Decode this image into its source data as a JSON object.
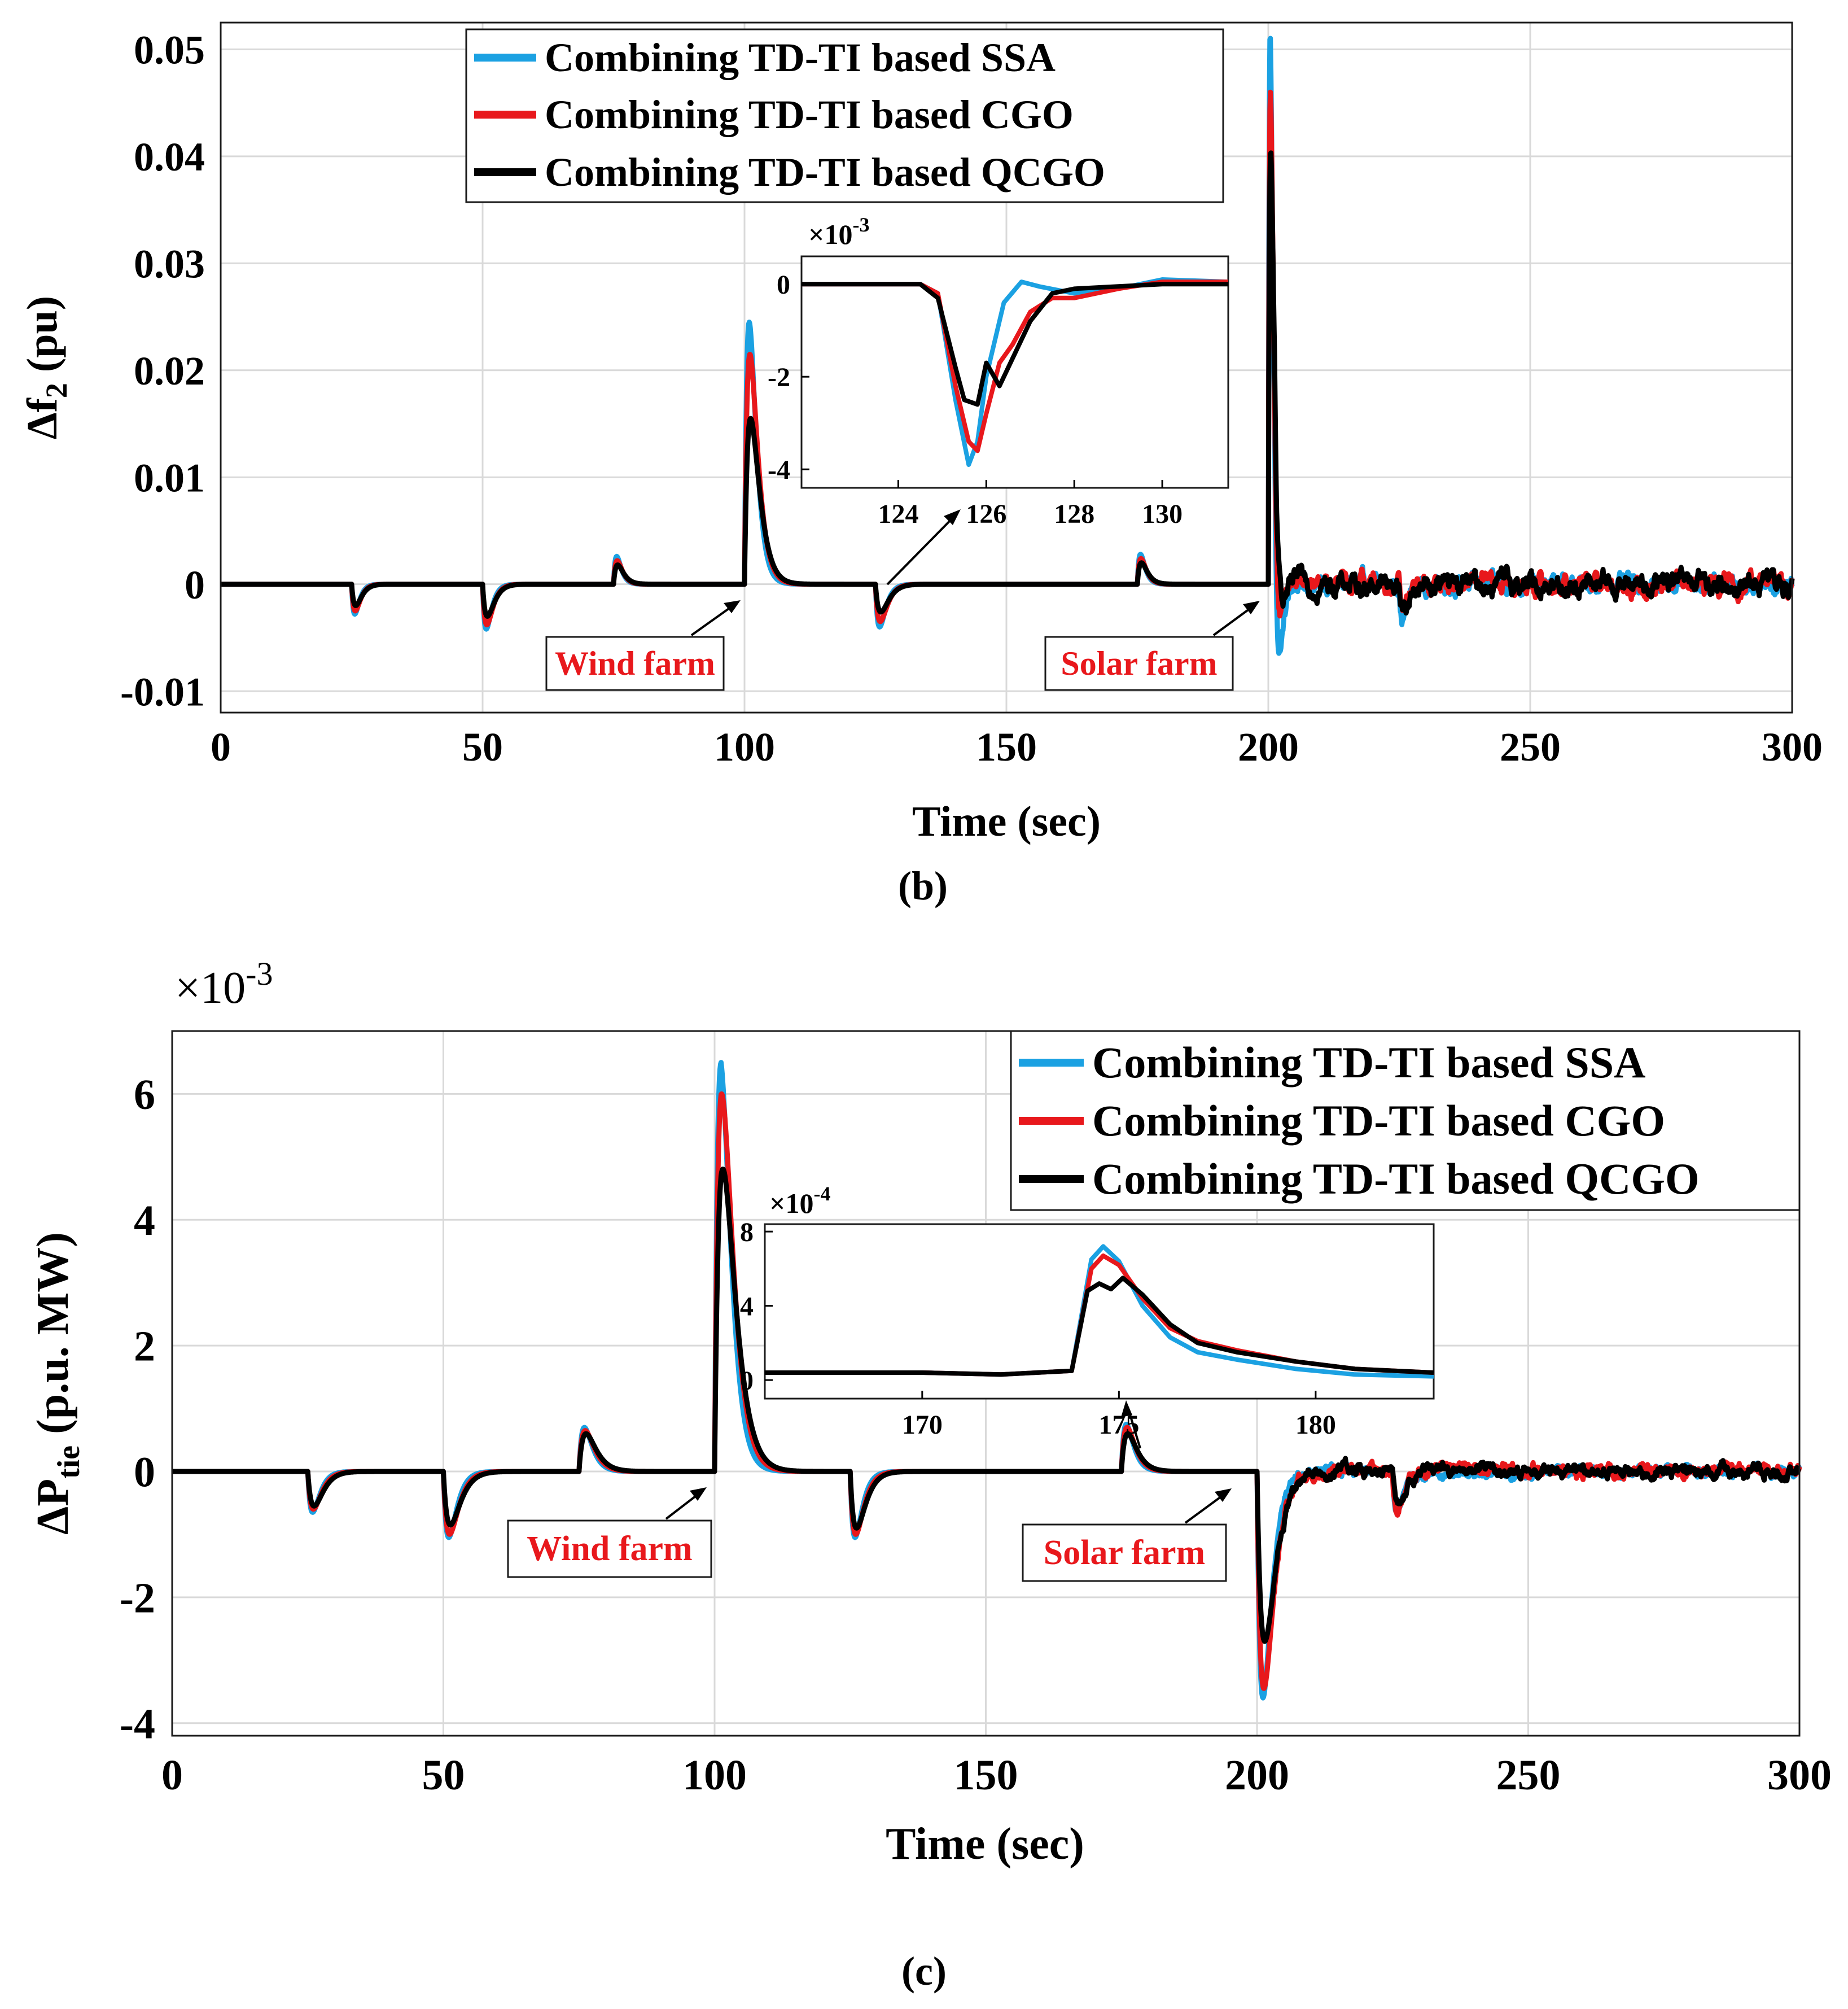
{
  "colors": {
    "ssa": "#1ba1e2",
    "cgo": "#e8181c",
    "qcgo": "#000000",
    "annotation": "#e8181c",
    "grid": "#d9d9d9",
    "background": "#ffffff"
  },
  "chart_data": [
    {
      "id": "b",
      "type": "line",
      "caption": "(b)",
      "xlabel": "Time (sec)",
      "ylabel_main": "Δf",
      "ylabel_sub": "2",
      "ylabel_tail": " (pu)",
      "xlim": [
        0,
        300
      ],
      "ylim": [
        -0.012,
        0.0525
      ],
      "xticks": [
        0,
        50,
        100,
        150,
        200,
        250,
        300
      ],
      "xtick_labels": [
        "0",
        "50",
        "100",
        "150",
        "200",
        "250",
        "300"
      ],
      "yticks": [
        -0.01,
        0,
        0.01,
        0.02,
        0.03,
        0.04,
        0.05
      ],
      "ytick_labels": [
        "-0.01",
        "0",
        "0.01",
        "0.02",
        "0.03",
        "0.04",
        "0.05"
      ],
      "grid": true,
      "legend": {
        "placement": "top-center",
        "entries": [
          "Combining TD-TI based SSA",
          "Combining TD-TI based CGO",
          "Combining TD-TI based QCGO"
        ]
      },
      "annotations": [
        "Wind farm",
        "Solar farm"
      ],
      "events": [
        {
          "t": 25,
          "amp": [
            -0.0028,
            -0.0025,
            -0.002
          ],
          "tau": 0.6
        },
        {
          "t": 50,
          "amp": [
            -0.0042,
            -0.0038,
            -0.003
          ],
          "tau": 0.7
        },
        {
          "t": 75,
          "amp": [
            0.0026,
            0.0022,
            0.0018
          ],
          "tau": 0.6
        },
        {
          "t": 100,
          "amp": [
            0.0245,
            0.0215,
            0.0155
          ],
          "tau": 0.9
        },
        {
          "t": 125,
          "amp": [
            -0.004,
            -0.0035,
            -0.0026
          ],
          "tau": 0.8
        },
        {
          "t": 175,
          "amp": [
            0.0028,
            0.0024,
            0.002
          ],
          "tau": 0.6
        },
        {
          "t": 200,
          "amp": [
            0.0515,
            0.046,
            0.0405
          ],
          "tau": 0.35,
          "undershoot": [
            -0.009,
            -0.006,
            -0.005
          ]
        },
        {
          "t": 225,
          "amp": [
            -0.0032,
            -0.0028,
            -0.0024
          ],
          "tau": 0.6
        }
      ],
      "noise_after": 201,
      "noise_amp": [
        0.0009,
        0.0011,
        0.0012
      ],
      "series": [
        {
          "name": "Combining TD-TI based SSA",
          "color": "#1ba1e2"
        },
        {
          "name": "Combining TD-TI based CGO",
          "color": "#e8181c"
        },
        {
          "name": "Combining TD-TI based QCGO",
          "color": "#000000"
        }
      ],
      "inset": {
        "exponent_label": "×10",
        "exponent_power": "-3",
        "xlim": [
          121.8,
          131.5
        ],
        "ylim": [
          -4.4,
          0.6
        ],
        "xticks": [
          124,
          126,
          128,
          130
        ],
        "xtick_labels": [
          "124",
          "126",
          "128",
          "130"
        ],
        "yticks": [
          -4,
          -2,
          0
        ],
        "ytick_labels": [
          "-4",
          "-2",
          "0"
        ],
        "series": [
          {
            "name": "Combining TD-TI based SSA",
            "x": [
              121.8,
              124.5,
              124.9,
              125.3,
              125.6,
              125.8,
              126.0,
              126.4,
              126.8,
              127.2,
              128.0,
              129.0,
              130.0,
              131.5
            ],
            "y": [
              0,
              0,
              -0.2,
              -2.5,
              -3.9,
              -3.4,
              -2.0,
              -0.4,
              0.05,
              -0.05,
              -0.2,
              -0.1,
              0.1,
              0.05
            ]
          },
          {
            "name": "Combining TD-TI based CGO",
            "x": [
              121.8,
              124.5,
              124.9,
              125.3,
              125.6,
              125.8,
              126.0,
              126.3,
              126.6,
              127.0,
              127.5,
              128.0,
              129.0,
              130.0,
              131.5
            ],
            "y": [
              0,
              0,
              -0.2,
              -2.2,
              -3.4,
              -3.6,
              -2.8,
              -1.7,
              -1.3,
              -0.6,
              -0.3,
              -0.3,
              -0.1,
              0.05,
              0.05
            ]
          },
          {
            "name": "Combining TD-TI based QCGO",
            "x": [
              121.8,
              124.5,
              124.9,
              125.3,
              125.5,
              125.8,
              126.0,
              126.3,
              126.6,
              127.0,
              127.5,
              128.0,
              129.0,
              130.0,
              131.5
            ],
            "y": [
              0,
              0,
              -0.3,
              -1.8,
              -2.5,
              -2.6,
              -1.7,
              -2.2,
              -1.6,
              -0.8,
              -0.2,
              -0.1,
              -0.05,
              0,
              0
            ]
          }
        ]
      }
    },
    {
      "id": "c",
      "type": "line",
      "caption": "(c)",
      "xlabel": "Time (sec)",
      "ylabel_main": "ΔP",
      "ylabel_sub": "tie",
      "ylabel_tail": " (p.u. MW)",
      "exponent_label": "×10",
      "exponent_power": "-3",
      "xlim": [
        0,
        300
      ],
      "ylim": [
        -4.2,
        7.0
      ],
      "xticks": [
        0,
        50,
        100,
        150,
        200,
        250,
        300
      ],
      "xtick_labels": [
        "0",
        "50",
        "100",
        "150",
        "200",
        "250",
        "300"
      ],
      "yticks": [
        -4,
        -2,
        0,
        2,
        4,
        6
      ],
      "ytick_labels": [
        "-4",
        "-2",
        "0",
        "2",
        "4",
        "6"
      ],
      "grid": true,
      "legend": {
        "placement": "top-right",
        "entries": [
          "Combining TD-TI based SSA",
          "Combining TD-TI based CGO",
          "Combining TD-TI based QCGO"
        ]
      },
      "annotations": [
        "Wind farm",
        "Solar farm"
      ],
      "events": [
        {
          "t": 25,
          "amp": [
            -0.65,
            -0.6,
            -0.55
          ],
          "tau": 0.9
        },
        {
          "t": 50,
          "amp": [
            -1.05,
            -1.0,
            -0.85
          ],
          "tau": 1.0
        },
        {
          "t": 75,
          "amp": [
            0.7,
            0.65,
            0.6
          ],
          "tau": 1.0
        },
        {
          "t": 100,
          "amp": [
            6.5,
            6.05,
            4.85
          ],
          "tau": 1.2,
          "undershoot": [
            -0.15,
            -0.1,
            -0.05
          ]
        },
        {
          "t": 125,
          "amp": [
            -1.05,
            -1.0,
            -0.9
          ],
          "tau": 0.9
        },
        {
          "t": 175,
          "amp": [
            0.75,
            0.7,
            0.6
          ],
          "tau": 0.9
        },
        {
          "t": 200,
          "amp": [
            -3.6,
            -3.45,
            -2.7
          ],
          "tau": 1.1
        },
        {
          "t": 225,
          "amp": [
            -0.65,
            -0.6,
            -0.5
          ],
          "tau": 0.8
        }
      ],
      "noise_after": 203,
      "noise_amp": [
        0.1,
        0.12,
        0.12
      ],
      "series": [
        {
          "name": "Combining TD-TI based SSA",
          "color": "#1ba1e2"
        },
        {
          "name": "Combining TD-TI based CGO",
          "color": "#e8181c"
        },
        {
          "name": "Combining TD-TI based QCGO",
          "color": "#000000"
        }
      ],
      "inset": {
        "exponent_label": "×10",
        "exponent_power": "-4",
        "xlim": [
          166,
          183
        ],
        "ylim": [
          -1.0,
          8.4
        ],
        "xticks": [
          170,
          175,
          180
        ],
        "xtick_labels": [
          "170",
          "175",
          "180"
        ],
        "yticks": [
          0,
          4,
          8
        ],
        "ytick_labels": [
          "0",
          "4",
          "8"
        ],
        "series": [
          {
            "name": "Combining TD-TI based SSA",
            "x": [
              166,
              170,
              172,
              173.8,
              174.3,
              174.6,
              175.0,
              175.6,
              176.3,
              177.0,
              178.0,
              179.5,
              181.0,
              183.0
            ],
            "y": [
              0.4,
              0.4,
              0.3,
              0.5,
              6.5,
              7.2,
              6.4,
              4.0,
              2.3,
              1.5,
              1.1,
              0.6,
              0.3,
              0.2
            ]
          },
          {
            "name": "Combining TD-TI based CGO",
            "x": [
              166,
              170,
              172,
              173.8,
              174.3,
              174.6,
              175.0,
              175.6,
              176.3,
              177.0,
              178.0,
              179.5,
              181.0,
              183.0
            ],
            "y": [
              0.4,
              0.4,
              0.3,
              0.5,
              6.0,
              6.7,
              6.2,
              4.4,
              2.8,
              2.1,
              1.6,
              1.0,
              0.6,
              0.4
            ]
          },
          {
            "name": "Combining TD-TI based QCGO",
            "x": [
              166,
              170,
              172,
              173.8,
              174.2,
              174.5,
              174.8,
              175.1,
              175.6,
              176.3,
              177.0,
              178.0,
              179.5,
              181.0,
              183.0
            ],
            "y": [
              0.4,
              0.4,
              0.3,
              0.5,
              4.8,
              5.2,
              4.9,
              5.5,
              4.6,
              3.0,
              2.0,
              1.5,
              1.0,
              0.6,
              0.4
            ]
          }
        ]
      }
    }
  ]
}
